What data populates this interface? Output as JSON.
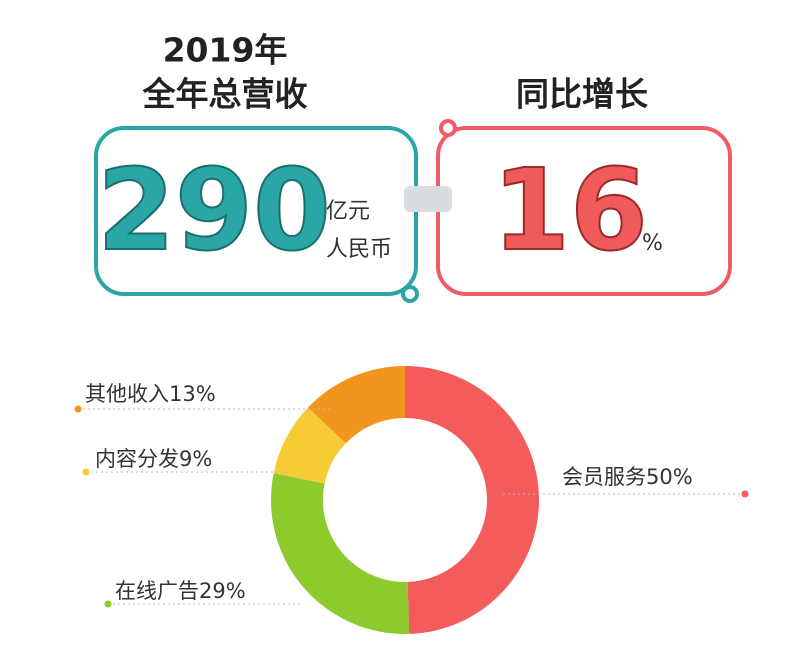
{
  "revenue": {
    "label_line1": "2019年",
    "label_line2": "全年总营收",
    "value": 290,
    "unit_line1": "亿元",
    "unit_line2": "人民币"
  },
  "growth": {
    "label": "同比增长",
    "value": 16,
    "unit": "%"
  },
  "chart_data": {
    "type": "pie",
    "categories": [
      "会员服务",
      "在线广告",
      "内容分发",
      "其他收入"
    ],
    "values": [
      50,
      29,
      9,
      13
    ],
    "value_labels": [
      "50%",
      "29%",
      "9%",
      "13%"
    ],
    "colors": [
      "#f45b5b",
      "#8dcb2c",
      "#f6cb35",
      "#f2951e"
    ]
  }
}
